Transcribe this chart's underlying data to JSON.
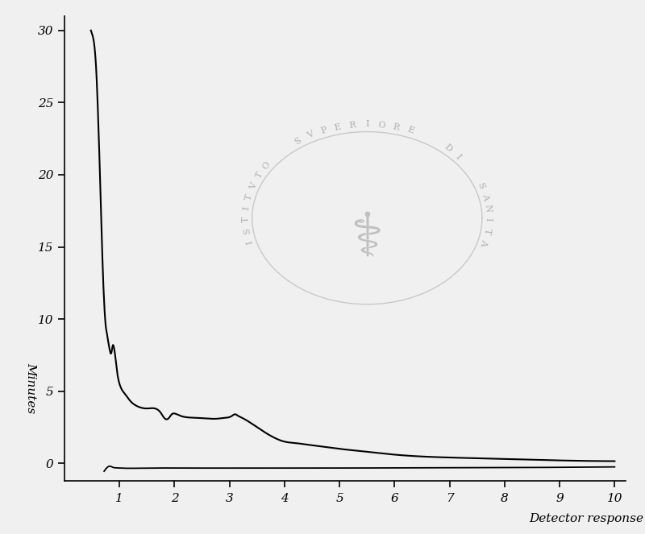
{
  "title": "",
  "xlabel": "Detector response",
  "ylabel": "Minutes",
  "xlim": [
    0,
    10.2
  ],
  "ylim": [
    -1.2,
    31
  ],
  "xticks": [
    1,
    2,
    3,
    4,
    5,
    6,
    7,
    8,
    9,
    10
  ],
  "yticks": [
    0,
    5,
    10,
    15,
    20,
    25,
    30
  ],
  "bg_color": "#f0f0f0",
  "line_color": "#000000",
  "watermark_color": "#999999",
  "figsize": [
    8.0,
    6.63
  ],
  "dpi": 100,
  "main_curve_x": [
    0.48,
    0.52,
    0.58,
    0.62,
    0.66,
    0.7,
    0.73,
    0.75,
    0.78,
    0.8,
    0.82,
    0.84,
    0.86,
    0.88,
    0.9,
    0.92,
    0.95,
    1.0,
    1.1,
    1.2,
    1.3,
    1.5,
    1.7,
    1.75,
    1.8,
    1.85,
    1.9,
    1.95,
    2.0,
    2.1,
    2.2,
    2.4,
    2.6,
    2.8,
    2.9,
    3.0,
    3.05,
    3.1,
    3.15,
    3.2,
    3.3,
    3.5,
    3.8,
    4.0,
    4.2,
    4.4,
    4.6,
    5.0,
    5.5,
    6.0,
    7.0,
    8.0,
    9.0,
    10.0
  ],
  "main_curve_y": [
    30.0,
    29.5,
    27.0,
    23.0,
    18.0,
    13.0,
    10.5,
    9.5,
    8.8,
    8.3,
    7.9,
    7.6,
    7.8,
    8.2,
    8.0,
    7.5,
    6.5,
    5.5,
    4.8,
    4.3,
    4.0,
    3.8,
    3.7,
    3.5,
    3.2,
    3.05,
    3.15,
    3.4,
    3.45,
    3.3,
    3.2,
    3.15,
    3.1,
    3.1,
    3.15,
    3.2,
    3.3,
    3.4,
    3.3,
    3.2,
    3.0,
    2.5,
    1.8,
    1.5,
    1.4,
    1.3,
    1.2,
    1.0,
    0.8,
    0.6,
    0.4,
    0.3,
    0.2,
    0.15
  ],
  "bottom_line_x": [
    0.72,
    0.76,
    0.82,
    0.88,
    0.95,
    1.0,
    1.5,
    2.0,
    3.0,
    4.0,
    5.0,
    6.0,
    7.0,
    8.0,
    9.0,
    10.0
  ],
  "bottom_line_y": [
    -0.55,
    -0.35,
    -0.2,
    -0.28,
    -0.32,
    -0.33,
    -0.33,
    -0.33,
    -0.33,
    -0.33,
    -0.33,
    -0.32,
    -0.31,
    -0.3,
    -0.28,
    -0.25
  ]
}
